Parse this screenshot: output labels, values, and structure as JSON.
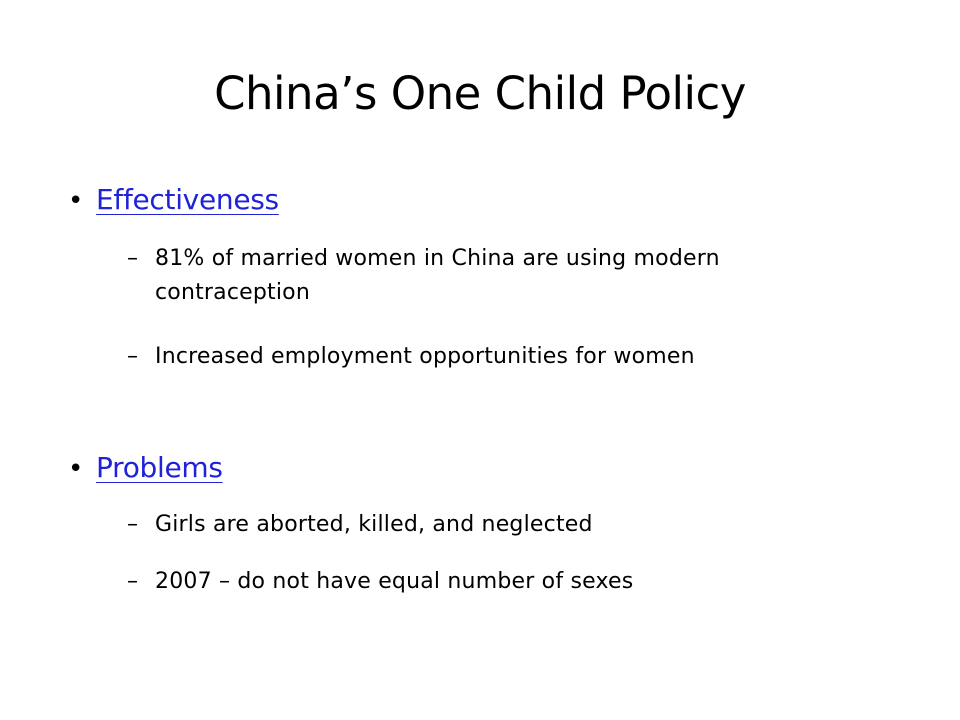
{
  "slide": {
    "title": "China’s One Child Policy",
    "bullet_glyph": "•",
    "dash_glyph": "–",
    "link_color": "#1f22d9",
    "sections": [
      {
        "heading": "Effectiveness",
        "points": [
          "81% of married women in China are using modern contraception",
          "Increased employment opportunities for women"
        ]
      },
      {
        "heading": "Problems",
        "points": [
          "Girls are aborted, killed, and neglected",
          "2007 – do not have equal number of sexes"
        ]
      }
    ]
  }
}
